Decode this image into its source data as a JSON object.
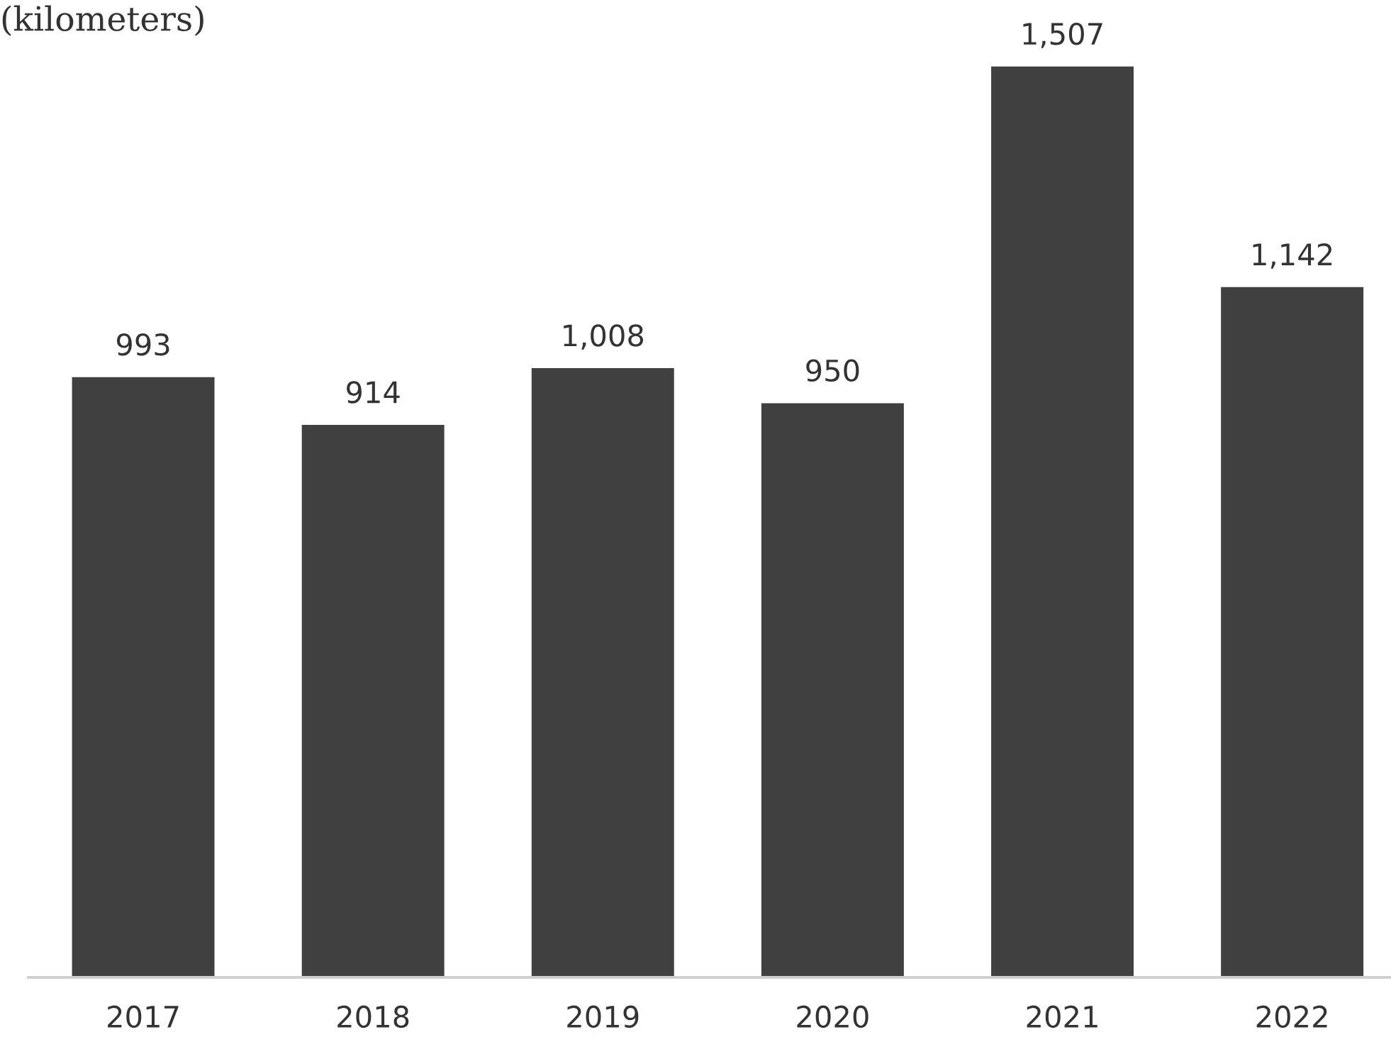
{
  "chart_data": {
    "type": "bar",
    "title": "(kilometers)",
    "categories": [
      "2017",
      "2018",
      "2019",
      "2020",
      "2021",
      "2022"
    ],
    "values": [
      993,
      914,
      1008,
      950,
      1507,
      1142
    ],
    "value_labels": [
      "993",
      "914",
      "1,008",
      "950",
      "1,507",
      "1,142"
    ],
    "color": "#404040",
    "grid": false,
    "legend": false
  }
}
